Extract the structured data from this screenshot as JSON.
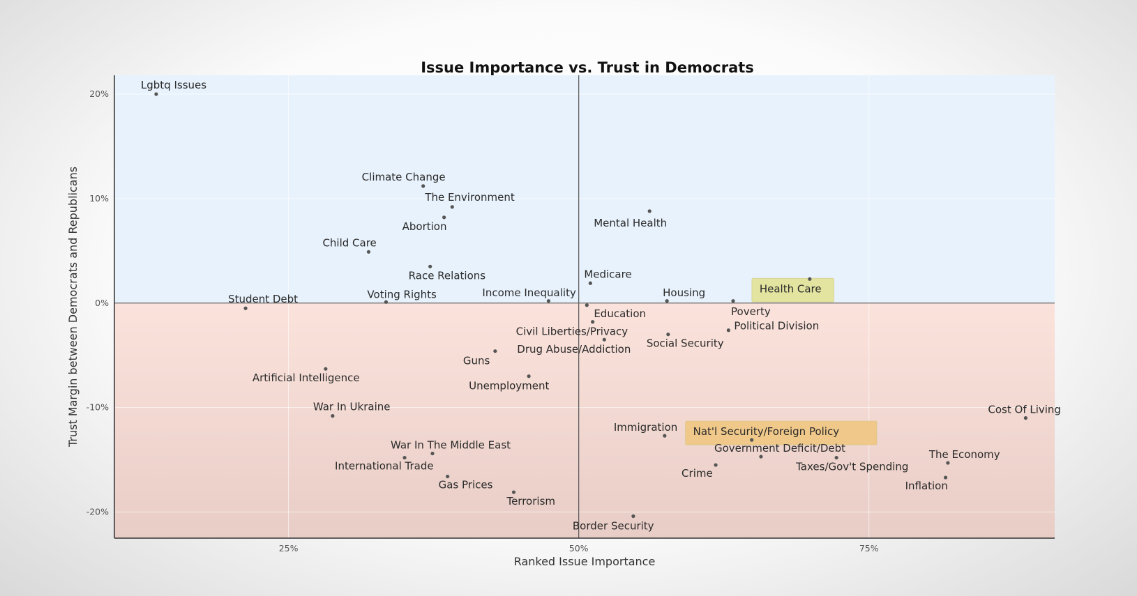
{
  "chart_data": {
    "type": "scatter",
    "title": "Issue Importance vs. Trust in Democrats",
    "xlabel": "Ranked Issue Importance",
    "ylabel": "Trust Margin between Democrats and Republicans",
    "xlim": [
      10,
      91
    ],
    "ylim": [
      -22.5,
      21.8
    ],
    "x_ticks": [
      {
        "value": 25,
        "label": "25%"
      },
      {
        "value": 50,
        "label": "50%"
      },
      {
        "value": 75,
        "label": "75%"
      }
    ],
    "y_ticks": [
      {
        "value": 20,
        "label": "20%"
      },
      {
        "value": 10,
        "label": "10%"
      },
      {
        "value": 0,
        "label": "0%"
      },
      {
        "value": -10,
        "label": "-10%"
      },
      {
        "value": -20,
        "label": "-20%"
      }
    ],
    "grid": true,
    "colors": {
      "positive_region": "#e8f2fc",
      "negative_region_top": "#fbe3dc",
      "negative_region_bottom": "#e8cdc6",
      "highlight_green": "#e3e4a0",
      "highlight_orange": "#f0c98a"
    },
    "points": [
      {
        "label": "Lgbtq Issues",
        "x": 13.6,
        "y": 20.0
      },
      {
        "label": "Climate Change",
        "x": 36.6,
        "y": 11.2
      },
      {
        "label": "The Environment",
        "x": 39.1,
        "y": 9.2
      },
      {
        "label": "Abortion",
        "x": 38.4,
        "y": 8.2
      },
      {
        "label": "Mental Health",
        "x": 56.1,
        "y": 8.8
      },
      {
        "label": "Child Care",
        "x": 31.9,
        "y": 4.9
      },
      {
        "label": "Race Relations",
        "x": 37.2,
        "y": 3.5
      },
      {
        "label": "Medicare",
        "x": 51.0,
        "y": 1.9
      },
      {
        "label": "Health Care",
        "x": 69.9,
        "y": 2.3,
        "highlight": "green"
      },
      {
        "label": "Student Debt",
        "x": 21.3,
        "y": -0.5
      },
      {
        "label": "Voting Rights",
        "x": 33.4,
        "y": 0.1
      },
      {
        "label": "Income Inequality",
        "x": 47.4,
        "y": 0.2
      },
      {
        "label": "Housing",
        "x": 57.6,
        "y": 0.2
      },
      {
        "label": "Poverty",
        "x": 63.3,
        "y": 0.2
      },
      {
        "label": "Education",
        "x": 50.7,
        "y": -0.2
      },
      {
        "label": "Civil Liberties/Privacy",
        "x": 51.2,
        "y": -1.8
      },
      {
        "label": "Political Division",
        "x": 62.9,
        "y": -2.6
      },
      {
        "label": "Social Security",
        "x": 57.7,
        "y": -3.0
      },
      {
        "label": "Drug Abuse/Addiction",
        "x": 52.2,
        "y": -3.5
      },
      {
        "label": "Guns",
        "x": 42.8,
        "y": -4.6
      },
      {
        "label": "Artificial Intelligence",
        "x": 28.2,
        "y": -6.3
      },
      {
        "label": "Unemployment",
        "x": 45.7,
        "y": -7.0
      },
      {
        "label": "War In Ukraine",
        "x": 28.8,
        "y": -10.8
      },
      {
        "label": "Cost Of Living",
        "x": 88.5,
        "y": -11.0
      },
      {
        "label": "Immigration",
        "x": 57.4,
        "y": -12.7
      },
      {
        "label": "Nat'l Security/Foreign Policy",
        "x": 64.9,
        "y": -13.1,
        "highlight": "orange"
      },
      {
        "label": "War In The Middle East",
        "x": 37.4,
        "y": -14.4
      },
      {
        "label": "International Trade",
        "x": 35.0,
        "y": -14.8
      },
      {
        "label": "Government Deficit/Debt",
        "x": 65.7,
        "y": -14.7
      },
      {
        "label": "Taxes/Gov't Spending",
        "x": 72.2,
        "y": -14.8
      },
      {
        "label": "The Economy",
        "x": 81.8,
        "y": -15.3
      },
      {
        "label": "Crime",
        "x": 61.8,
        "y": -15.5
      },
      {
        "label": "Gas Prices",
        "x": 38.7,
        "y": -16.6
      },
      {
        "label": "Inflation",
        "x": 81.6,
        "y": -16.7
      },
      {
        "label": "Terrorism",
        "x": 44.4,
        "y": -18.1
      },
      {
        "label": "Border Security",
        "x": 54.7,
        "y": -20.4
      }
    ]
  }
}
